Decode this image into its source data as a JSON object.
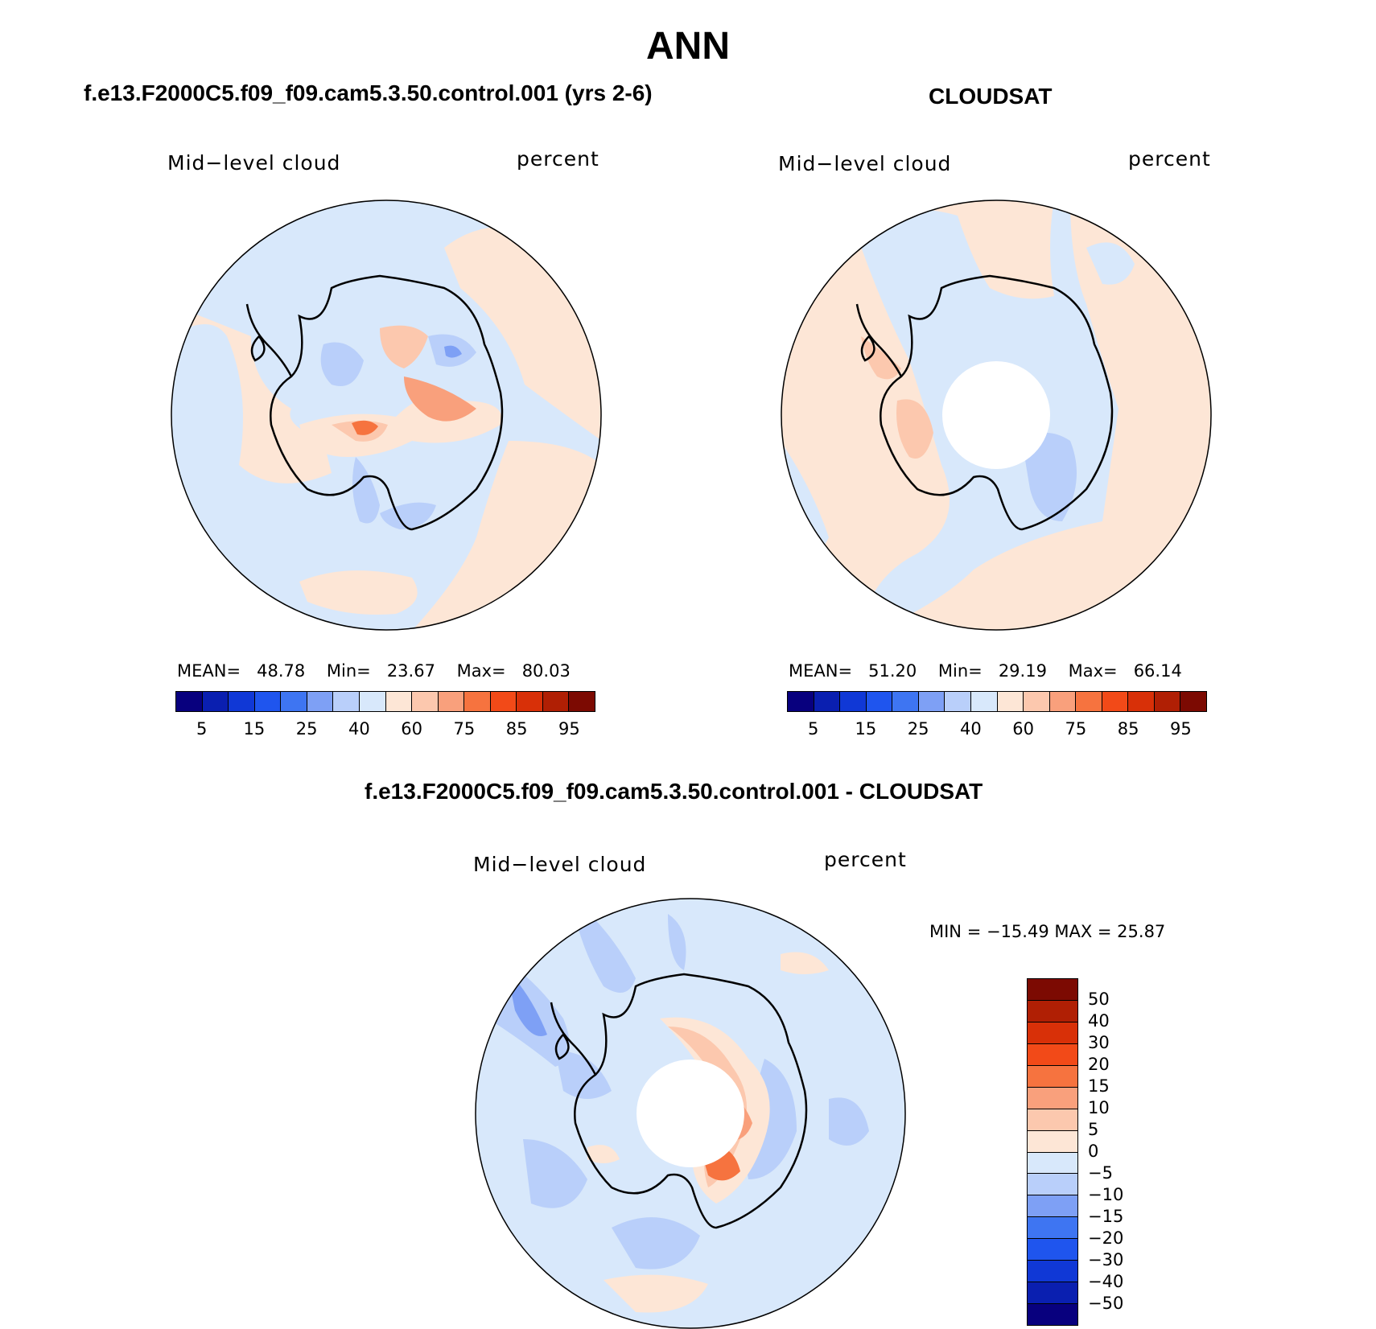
{
  "title": "ANN",
  "panels": {
    "model": {
      "title": "f.e13.F2000C5.f09_f09.cam5.3.50.control.001 (yrs 2-6)",
      "variable": "Mid−level cloud",
      "units": "percent",
      "stats": {
        "mean_label": "MEAN=",
        "mean": "48.78",
        "min_label": "Min=",
        "min": "23.67",
        "max_label": "Max=",
        "max": "80.03"
      }
    },
    "obs": {
      "title": "CLOUDSAT",
      "variable": "Mid−level cloud",
      "units": "percent",
      "stats": {
        "mean_label": "MEAN=",
        "mean": "51.20",
        "min_label": "Min=",
        "min": "29.19",
        "max_label": "Max=",
        "max": "66.14"
      }
    },
    "diff": {
      "title": "f.e13.F2000C5.f09_f09.cam5.3.50.control.001 - CLOUDSAT",
      "variable": "Mid−level cloud",
      "units": "percent",
      "minmax": "MIN = −15.49 MAX =   25.87"
    }
  },
  "colorbar_abs": {
    "colors": [
      "#08007e",
      "#0a1fb0",
      "#1038d6",
      "#1f55ee",
      "#3e75f2",
      "#7ea0f5",
      "#b9cffa",
      "#d8e8fb",
      "#fde6d6",
      "#fcc8ae",
      "#f9a07c",
      "#f6733f",
      "#f24a18",
      "#d83008",
      "#b01f04",
      "#7c0a02"
    ],
    "ticks": [
      "5",
      "15",
      "25",
      "40",
      "60",
      "75",
      "85",
      "95"
    ]
  },
  "colorbar_diff": {
    "colors": [
      "#7c0a02",
      "#b01f04",
      "#d83008",
      "#f24a18",
      "#f6733f",
      "#f9a07c",
      "#fcc8ae",
      "#fde6d6",
      "#d8e8fb",
      "#b9cffa",
      "#7ea0f5",
      "#3e75f2",
      "#1f55ee",
      "#1038d6",
      "#0a1fb0",
      "#08007e"
    ],
    "ticks": [
      "50",
      "40",
      "30",
      "20",
      "15",
      "10",
      "5",
      "0",
      "−5",
      "−10",
      "−15",
      "−20",
      "−30",
      "−40",
      "−50"
    ]
  }
}
